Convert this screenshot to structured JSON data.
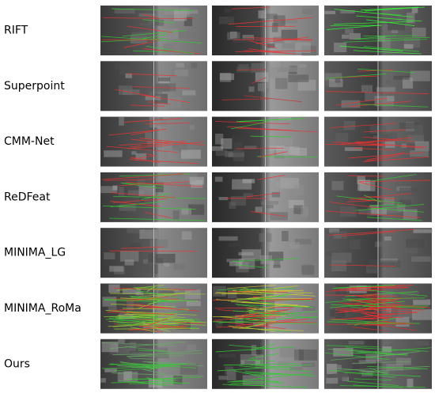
{
  "rows": [
    "RIFT",
    "Superpoint",
    "CMM-Net",
    "ReDFeat",
    "MINIMA_LG",
    "MINIMA_RoMa",
    "Ours"
  ]
}
